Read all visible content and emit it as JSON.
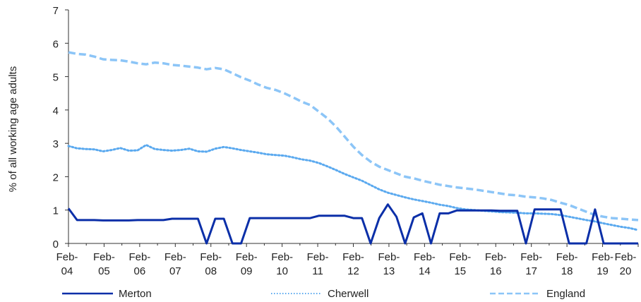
{
  "chart_data": {
    "type": "line",
    "title": "",
    "ylabel": "% of all working age adults",
    "xlabel": "",
    "ylim": [
      0,
      7
    ],
    "yticks": [
      "0",
      "1",
      "2",
      "3",
      "4",
      "5",
      "6",
      "7"
    ],
    "xticks": [
      {
        "top": "Feb-",
        "bottom": "04"
      },
      {
        "top": "Feb-",
        "bottom": "05"
      },
      {
        "top": "Feb-",
        "bottom": "06"
      },
      {
        "top": "Feb-",
        "bottom": "07"
      },
      {
        "top": "Feb-",
        "bottom": "08"
      },
      {
        "top": "Feb-",
        "bottom": "09"
      },
      {
        "top": "Feb-",
        "bottom": "10"
      },
      {
        "top": "Feb-",
        "bottom": "11"
      },
      {
        "top": "Feb-",
        "bottom": "12"
      },
      {
        "top": "Feb-",
        "bottom": "13"
      },
      {
        "top": "Feb-",
        "bottom": "14"
      },
      {
        "top": "Feb-",
        "bottom": "15"
      },
      {
        "top": "Feb-",
        "bottom": "16"
      },
      {
        "top": "Feb-",
        "bottom": "17"
      },
      {
        "top": "Feb-",
        "bottom": "18"
      },
      {
        "top": "Feb-",
        "bottom": "19"
      },
      {
        "top": "Feb-",
        "bottom": "20"
      }
    ],
    "x_start": "Feb-04",
    "x_end": "Feb-20",
    "x_frequency": "quarterly",
    "legend_position": "bottom",
    "grid": false,
    "series": [
      {
        "name": "Merton",
        "color": "#0b2fa8",
        "style": "solid",
        "values": [
          1.05,
          0.7,
          0.7,
          0.7,
          0.69,
          0.69,
          0.69,
          0.69,
          0.7,
          0.7,
          0.7,
          0.7,
          0.74,
          0.74,
          0.74,
          0.74,
          0.0,
          0.74,
          0.74,
          0.0,
          0.0,
          0.76,
          0.76,
          0.76,
          0.76,
          0.76,
          0.76,
          0.76,
          0.76,
          0.83,
          0.83,
          0.83,
          0.83,
          0.76,
          0.76,
          0.0,
          0.76,
          1.17,
          0.8,
          0.0,
          0.78,
          0.9,
          0.0,
          0.9,
          0.9,
          0.99,
          0.99,
          0.99,
          0.99,
          0.99,
          0.98,
          0.98,
          0.98,
          0.0,
          1.02,
          1.02,
          1.02,
          1.02,
          0.0,
          0.0,
          0.0,
          1.02,
          0.0,
          0.0,
          0.0,
          0.0,
          0.0
        ]
      },
      {
        "name": "Cherwell",
        "color": "#5aa9ef",
        "style": "dotted",
        "values": [
          2.92,
          2.85,
          2.83,
          2.82,
          2.76,
          2.8,
          2.86,
          2.78,
          2.79,
          2.95,
          2.83,
          2.8,
          2.78,
          2.8,
          2.84,
          2.76,
          2.75,
          2.84,
          2.89,
          2.85,
          2.8,
          2.76,
          2.72,
          2.67,
          2.65,
          2.63,
          2.58,
          2.52,
          2.48,
          2.41,
          2.31,
          2.2,
          2.08,
          1.98,
          1.88,
          1.75,
          1.62,
          1.52,
          1.45,
          1.38,
          1.32,
          1.27,
          1.22,
          1.16,
          1.12,
          1.06,
          1.02,
          1.0,
          0.98,
          0.96,
          0.94,
          0.93,
          0.92,
          0.9,
          0.9,
          0.89,
          0.88,
          0.85,
          0.8,
          0.75,
          0.7,
          0.66,
          0.6,
          0.55,
          0.5,
          0.46,
          0.4
        ]
      },
      {
        "name": "England",
        "color": "#8cc5f7",
        "style": "dashed",
        "values": [
          5.73,
          5.68,
          5.66,
          5.6,
          5.52,
          5.5,
          5.49,
          5.45,
          5.4,
          5.37,
          5.42,
          5.4,
          5.35,
          5.33,
          5.3,
          5.27,
          5.22,
          5.26,
          5.22,
          5.1,
          4.98,
          4.88,
          4.76,
          4.66,
          4.6,
          4.5,
          4.38,
          4.25,
          4.15,
          3.95,
          3.75,
          3.5,
          3.2,
          2.9,
          2.65,
          2.45,
          2.3,
          2.2,
          2.1,
          2.0,
          1.95,
          1.88,
          1.82,
          1.76,
          1.72,
          1.68,
          1.65,
          1.62,
          1.58,
          1.54,
          1.5,
          1.46,
          1.44,
          1.4,
          1.38,
          1.35,
          1.3,
          1.22,
          1.15,
          1.05,
          0.95,
          0.85,
          0.8,
          0.76,
          0.74,
          0.72,
          0.7
        ]
      }
    ]
  }
}
